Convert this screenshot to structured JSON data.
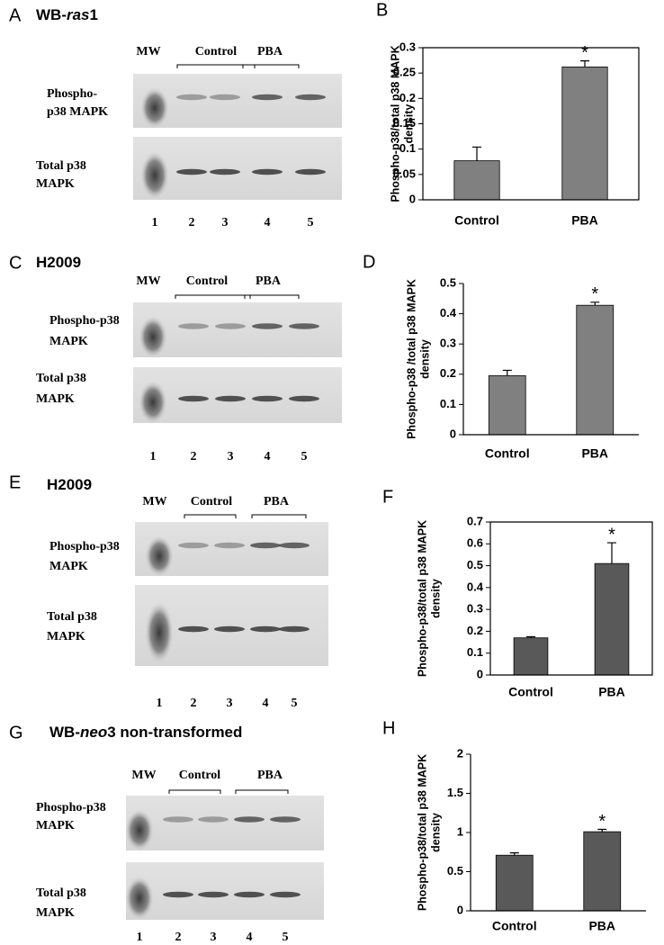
{
  "blots": [
    {
      "panel": "A",
      "title": [
        "WB-",
        "ras",
        "1"
      ],
      "mw": "MW",
      "groups": [
        "Control",
        "PBA"
      ],
      "rows": [
        [
          "Phospho-",
          "p38 MAPK"
        ],
        [
          "Total p38",
          "MAPK"
        ]
      ],
      "lanes": [
        "1",
        "2",
        "3",
        "4",
        "5"
      ]
    },
    {
      "panel": "C",
      "title": [
        "H2009"
      ],
      "mw": "MW",
      "groups": [
        "Control",
        "PBA"
      ],
      "rows": [
        [
          "Phospho-p38",
          "MAPK"
        ],
        [
          "Total p38",
          "MAPK"
        ]
      ],
      "lanes": [
        "1",
        "2",
        "3",
        "4",
        "5"
      ]
    },
    {
      "panel": "E",
      "title": [
        "H2009"
      ],
      "mw": "MW",
      "groups": [
        "Control",
        "PBA"
      ],
      "rows": [
        [
          "Phospho-p38",
          "MAPK"
        ],
        [
          "Total p38",
          "MAPK"
        ]
      ],
      "lanes": [
        "1",
        "2",
        "3",
        "4",
        "5"
      ]
    },
    {
      "panel": "G",
      "title": [
        "WB-",
        "neo",
        "3 non-transformed"
      ],
      "mw": "MW",
      "groups": [
        "Control",
        "PBA"
      ],
      "rows": [
        [
          "Phospho-p38",
          "MAPK"
        ],
        [
          "Total p38",
          "MAPK"
        ]
      ],
      "lanes": [
        "1",
        "2",
        "3",
        "4",
        "5"
      ]
    }
  ],
  "chart_data": [
    {
      "type": "bar",
      "panel": "B",
      "y_label": [
        "Phospho-p38/total p38 MAPK",
        "density"
      ],
      "categories": [
        "Control",
        "PBA"
      ],
      "values": [
        0.077,
        0.262
      ],
      "errors": [
        0.027,
        0.012
      ],
      "annotation": "*",
      "color": "#808080",
      "ylim": [
        0,
        0.3
      ],
      "yticks": [
        0,
        0.05,
        0.1,
        0.15,
        0.2,
        0.25,
        0.3
      ]
    },
    {
      "type": "bar",
      "panel": "D",
      "y_label": [
        "Phospho-p38 /total p38 MAPK",
        "density"
      ],
      "categories": [
        "Control",
        "PBA"
      ],
      "values": [
        0.195,
        0.428
      ],
      "errors": [
        0.018,
        0.01
      ],
      "annotation": "*",
      "color": "#808080",
      "ylim": [
        0,
        0.5
      ],
      "yticks": [
        0,
        0.1,
        0.2,
        0.3,
        0.4,
        0.5
      ]
    },
    {
      "type": "bar",
      "panel": "F",
      "y_label": [
        "Phospho-p38/total p38 MAPK",
        "density"
      ],
      "categories": [
        "Control",
        "PBA"
      ],
      "values": [
        0.17,
        0.51
      ],
      "errors": [
        0.005,
        0.095
      ],
      "annotation": "*",
      "color": "#595959",
      "ylim": [
        0,
        0.7
      ],
      "yticks": [
        0,
        0.1,
        0.2,
        0.3,
        0.4,
        0.5,
        0.6,
        0.7
      ]
    },
    {
      "type": "bar",
      "panel": "H",
      "y_label": [
        "Phospho-p38/total p38 MAPK",
        "density"
      ],
      "categories": [
        "Control",
        "PBA"
      ],
      "values": [
        0.71,
        1.01
      ],
      "errors": [
        0.03,
        0.03
      ],
      "annotation": "*",
      "color": "#595959",
      "ylim": [
        0,
        2
      ],
      "yticks": [
        0,
        0.5,
        1,
        1.5,
        2
      ]
    }
  ]
}
